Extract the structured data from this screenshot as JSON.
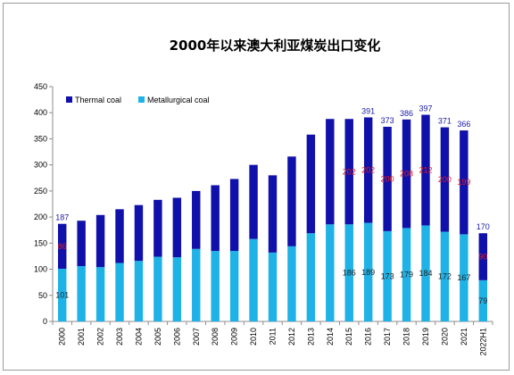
{
  "chart_data": {
    "type": "bar",
    "stacked": true,
    "title": "2000年以来澳大利亚煤炭出口变化",
    "categories": [
      "2000",
      "2001",
      "2002",
      "2003",
      "2004",
      "2005",
      "2006",
      "2007",
      "2008",
      "2009",
      "2010",
      "2011",
      "2012",
      "2013",
      "2014",
      "2015",
      "2016",
      "2017",
      "2018",
      "2019",
      "2020",
      "2021",
      "2022H1"
    ],
    "series": [
      {
        "name": "Metallurgical coal",
        "color": "#1fb2e6",
        "values": [
          101,
          106,
          104,
          112,
          116,
          124,
          123,
          139,
          135,
          135,
          158,
          132,
          144,
          169,
          186,
          186,
          189,
          173,
          179,
          184,
          172,
          167,
          79
        ]
      },
      {
        "name": "Thermal coal",
        "color": "#1010aa",
        "values": [
          86,
          87,
          100,
          103,
          107,
          109,
          114,
          111,
          126,
          138,
          142,
          148,
          172,
          189,
          202,
          202,
          202,
          200,
          208,
          212,
          200,
          199,
          90
        ]
      }
    ],
    "totals": [
      187,
      193,
      204,
      215,
      223,
      233,
      237,
      250,
      261,
      273,
      300,
      280,
      316,
      358,
      388,
      388,
      391,
      373,
      386,
      397,
      371,
      366,
      170
    ],
    "labels": {
      "total": {
        "2000": "187",
        "2016": "391",
        "2017": "373",
        "2018": "386",
        "2019": "397",
        "2020": "371",
        "2021": "366",
        "2022H1": "170"
      },
      "thermal": {
        "2000": "86",
        "2015": "202",
        "2016": "202",
        "2017": "200",
        "2018": "208",
        "2019": "212",
        "2020": "200",
        "2021": "199",
        "2022H1": "90"
      },
      "metallurgical": {
        "2000": "101",
        "2015": "186",
        "2016": "189",
        "2017": "173",
        "2018": "179",
        "2019": "184",
        "2020": "172",
        "2021": "167",
        "2022H1": "79"
      }
    },
    "ylim": [
      0,
      450
    ],
    "yticks": [
      0,
      50,
      100,
      150,
      200,
      250,
      300,
      350,
      400,
      450
    ],
    "xlabel": "",
    "ylabel": "",
    "grid": false,
    "legend_position": "top-left"
  }
}
